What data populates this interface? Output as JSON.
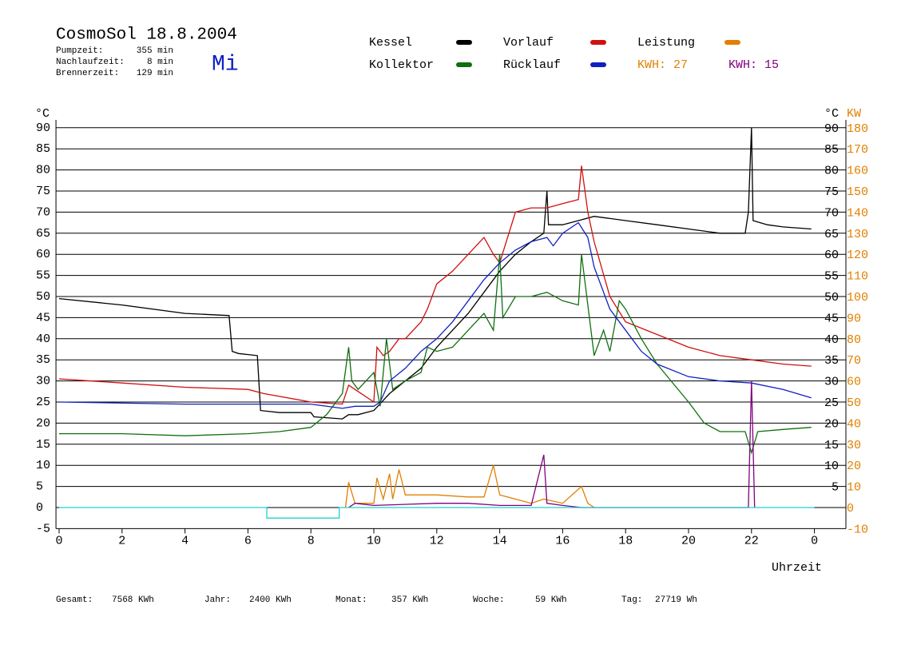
{
  "header": {
    "title": "CosmoSol 18.8.2004",
    "stats": [
      {
        "label": "Pumpzeit:",
        "value": "355 min"
      },
      {
        "label": "Nachlaufzeit:",
        "value": "8 min"
      },
      {
        "label": "Brennerzeit:",
        "value": "129 min"
      }
    ],
    "day": "Mi"
  },
  "chart_data": {
    "type": "line",
    "y_label": "°C",
    "y2_label": "KW",
    "x_label": "Uhrzeit",
    "xlim": [
      -0.1,
      25
    ],
    "xticks": [
      0,
      2,
      4,
      6,
      8,
      10,
      12,
      14,
      16,
      18,
      20,
      22,
      {
        "value": 24,
        "label": "0"
      }
    ],
    "ylim": [
      -5,
      92
    ],
    "yticks": [
      -5,
      0,
      5,
      10,
      15,
      20,
      25,
      30,
      35,
      40,
      45,
      50,
      55,
      60,
      65,
      70,
      75,
      80,
      85,
      90
    ],
    "y_right_ticks": [
      5,
      10,
      15,
      20,
      25,
      30,
      35,
      40,
      45,
      50,
      55,
      60,
      65,
      70,
      75,
      80,
      85,
      90
    ],
    "y2lim": [
      -10,
      184
    ],
    "y2ticks": [
      -10,
      0,
      10,
      20,
      30,
      40,
      50,
      60,
      70,
      80,
      90,
      100,
      110,
      120,
      130,
      140,
      150,
      160,
      170,
      180
    ],
    "y2_color": "#e08000",
    "grid": true,
    "kwh_labels": [
      {
        "text": "KWH: 27",
        "color": "#e08000"
      },
      {
        "text": "KWH: 15",
        "color": "#800080"
      }
    ],
    "series": [
      {
        "name": "Kessel",
        "color": "#000000",
        "x": [
          0,
          2,
          4,
          5.4,
          5.5,
          5.7,
          6.3,
          6.4,
          7,
          8,
          8.1,
          9,
          9.2,
          9.5,
          10,
          10.5,
          11,
          11.5,
          12,
          12.5,
          13,
          13.5,
          14,
          14.5,
          15,
          15.4,
          15.5,
          15.55,
          16,
          16.5,
          17,
          18,
          19,
          20,
          21,
          21.8,
          21.9,
          22,
          22.05,
          22.5,
          23,
          23.9
        ],
        "values": [
          49.5,
          48,
          46,
          45.5,
          37,
          36.5,
          36,
          23,
          22.5,
          22.5,
          21.5,
          21,
          22,
          22,
          23,
          27,
          30,
          33,
          38,
          42,
          46,
          51,
          56,
          60,
          63,
          65,
          75,
          67,
          67,
          68,
          69,
          68,
          67,
          66,
          65,
          65,
          70,
          90,
          68,
          67,
          66.5,
          66
        ]
      },
      {
        "name": "Vorlauf",
        "color": "#d01010",
        "x": [
          0,
          2,
          4,
          6,
          6.5,
          8,
          9,
          9.2,
          9.6,
          10,
          10.1,
          10.3,
          10.5,
          10.8,
          11,
          11.5,
          11.7,
          12,
          12.5,
          13,
          13.5,
          13.8,
          14,
          14.5,
          15,
          15.5,
          16,
          16.5,
          16.6,
          16.8,
          17,
          17.5,
          18,
          19,
          20,
          21,
          22,
          23,
          23.9
        ],
        "values": [
          30.5,
          29.5,
          28.5,
          28,
          27,
          25,
          24.5,
          29,
          27,
          25,
          38,
          36,
          37,
          40,
          40,
          44,
          47,
          53,
          56,
          60,
          64,
          60,
          58,
          70,
          71,
          71,
          72,
          73,
          81,
          70,
          63,
          50,
          44,
          41,
          38,
          36,
          35,
          34,
          33.5
        ]
      },
      {
        "name": "Leistung",
        "color": "#e08000",
        "axis": "y2",
        "x": [
          9.1,
          9.2,
          9.4,
          10,
          10.1,
          10.3,
          10.5,
          10.6,
          10.8,
          11,
          12,
          13,
          13.5,
          13.8,
          14,
          15,
          15.4,
          16,
          16.6,
          16.8,
          17
        ],
        "values": [
          0,
          12,
          2,
          2,
          14,
          4,
          16,
          4,
          18,
          6,
          6,
          5,
          5,
          20,
          6,
          2,
          4,
          2,
          10,
          2,
          0
        ]
      },
      {
        "name": "Kollektor",
        "color": "#107010",
        "x": [
          0,
          2,
          4,
          6,
          7,
          8,
          8.5,
          9,
          9.2,
          9.3,
          9.5,
          10,
          10.2,
          10.4,
          10.6,
          11,
          11.5,
          11.7,
          12,
          12.5,
          13,
          13.5,
          13.8,
          14,
          14.1,
          14.5,
          15,
          15.5,
          16,
          16.5,
          16.6,
          16.8,
          17,
          17.3,
          17.5,
          17.8,
          18,
          18.5,
          19,
          20,
          20.5,
          21,
          21.8,
          22,
          22.2,
          23,
          23.9
        ],
        "values": [
          17.5,
          17.5,
          17,
          17.5,
          18,
          19,
          22,
          27,
          38,
          30,
          28,
          32,
          24,
          40,
          28,
          30,
          32,
          38,
          37,
          38,
          42,
          46,
          42,
          60,
          45,
          50,
          50,
          51,
          49,
          48,
          60,
          48,
          36,
          42,
          37,
          49,
          47,
          40,
          34,
          25,
          20,
          18,
          18,
          13,
          18,
          18.5,
          19
        ]
      },
      {
        "name": "Rücklauf",
        "color": "#1020c0",
        "x": [
          0,
          4,
          6,
          8,
          9,
          9.4,
          10,
          10.2,
          10.5,
          11,
          11.5,
          12,
          12.5,
          13,
          13.5,
          14,
          14.5,
          15,
          15.5,
          15.7,
          16,
          16.5,
          16.8,
          17,
          17.5,
          18,
          18.5,
          19,
          20,
          21,
          22,
          23,
          23.9
        ],
        "values": [
          25,
          24.5,
          24.5,
          24.5,
          23.5,
          24,
          24,
          25,
          30,
          33,
          37,
          40,
          44,
          49,
          54,
          58,
          61,
          63,
          64,
          62,
          65,
          67.5,
          64,
          57,
          47,
          42,
          37,
          34,
          31,
          30,
          29.5,
          28,
          26
        ]
      },
      {
        "color": "#800080",
        "axis": "y2",
        "x": [
          9.2,
          9.4,
          10,
          12,
          13,
          14,
          15,
          15.4,
          15.5,
          16,
          16.6,
          21.9,
          22,
          22.1
        ],
        "values": [
          0,
          2,
          1,
          2,
          2,
          1,
          1,
          25,
          2,
          1,
          0,
          0,
          60,
          0
        ]
      },
      {
        "color": "#20d0d0",
        "x": [
          0,
          6.6,
          6.6,
          8.9,
          8.9,
          24
        ],
        "values": [
          0,
          0,
          -2.5,
          -2.5,
          0,
          0
        ]
      }
    ]
  },
  "footer": [
    {
      "label": "Gesamt:",
      "value": "7568 KWh"
    },
    {
      "label": "Jahr:",
      "value": "2400 KWh"
    },
    {
      "label": "Monat:",
      "value": "357 KWh"
    },
    {
      "label": "Woche:",
      "value": "59 KWh"
    },
    {
      "label": "Tag:",
      "value": "27719 Wh"
    }
  ]
}
